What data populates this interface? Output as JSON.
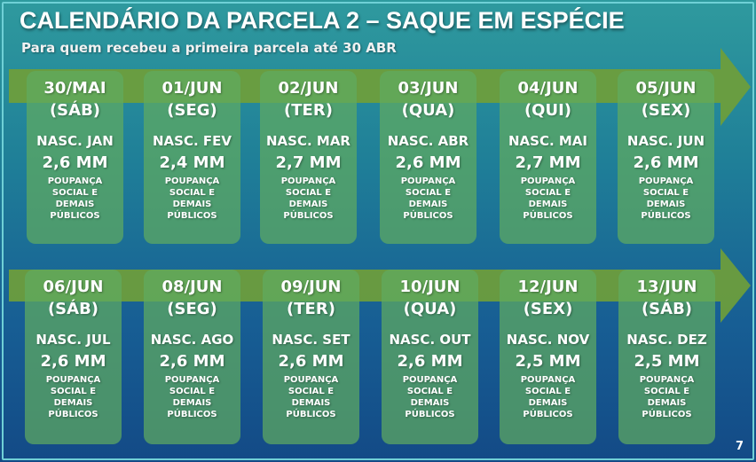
{
  "title": "CALENDÁRIO DA PARCELA 2 – SAQUE EM ESPÉCIE",
  "subtitle": "Para quem recebeu a primeira parcela até 30 ABR",
  "colors": {
    "arrow": "#6f9e3a",
    "card": "#5faa5f",
    "background_top": "#2f9a9e",
    "background_bottom": "#134a86"
  },
  "rows": [
    {
      "cards": [
        {
          "date": "30/MAI",
          "weekday": "(SÁB)",
          "birth_month": "NASC. JAN",
          "amount": "2,6 MM",
          "description": "POUPANÇA SOCIAL E DEMAIS PÚBLICOS"
        },
        {
          "date": "01/JUN",
          "weekday": "(SEG)",
          "birth_month": "NASC. FEV",
          "amount": "2,4 MM",
          "description": "POUPANÇA SOCIAL E DEMAIS PÚBLICOS"
        },
        {
          "date": "02/JUN",
          "weekday": "(TER)",
          "birth_month": "NASC. MAR",
          "amount": "2,7 MM",
          "description": "POUPANÇA SOCIAL E DEMAIS PÚBLICOS"
        },
        {
          "date": "03/JUN",
          "weekday": "(QUA)",
          "birth_month": "NASC. ABR",
          "amount": "2,6 MM",
          "description": "POUPANÇA SOCIAL E DEMAIS PÚBLICOS"
        },
        {
          "date": "04/JUN",
          "weekday": "(QUI)",
          "birth_month": "NASC. MAI",
          "amount": "2,7 MM",
          "description": "POUPANÇA SOCIAL E DEMAIS PÚBLICOS"
        },
        {
          "date": "05/JUN",
          "weekday": "(SEX)",
          "birth_month": "NASC. JUN",
          "amount": "2,6 MM",
          "description": "POUPANÇA SOCIAL E DEMAIS PÚBLICOS"
        }
      ]
    },
    {
      "cards": [
        {
          "date": "06/JUN",
          "weekday": "(SÁB)",
          "birth_month": "NASC. JUL",
          "amount": "2,6 MM",
          "description": "POUPANÇA SOCIAL E DEMAIS PÚBLICOS"
        },
        {
          "date": "08/JUN",
          "weekday": "(SEG)",
          "birth_month": "NASC. AGO",
          "amount": "2,6 MM",
          "description": "POUPANÇA SOCIAL E DEMAIS PÚBLICOS"
        },
        {
          "date": "09/JUN",
          "weekday": "(TER)",
          "birth_month": "NASC. SET",
          "amount": "2,6 MM",
          "description": "POUPANÇA SOCIAL E DEMAIS PÚBLICOS"
        },
        {
          "date": "10/JUN",
          "weekday": "(QUA)",
          "birth_month": "NASC. OUT",
          "amount": "2,6 MM",
          "description": "POUPANÇA SOCIAL E DEMAIS PÚBLICOS"
        },
        {
          "date": "12/JUN",
          "weekday": "(SEX)",
          "birth_month": "NASC. NOV",
          "amount": "2,5 MM",
          "description": "POUPANÇA SOCIAL E DEMAIS PÚBLICOS"
        },
        {
          "date": "13/JUN",
          "weekday": "(SÁB)",
          "birth_month": "NASC. DEZ",
          "amount": "2,5 MM",
          "description": "POUPANÇA SOCIAL E DEMAIS PÚBLICOS"
        }
      ]
    }
  ],
  "page_number": "7"
}
